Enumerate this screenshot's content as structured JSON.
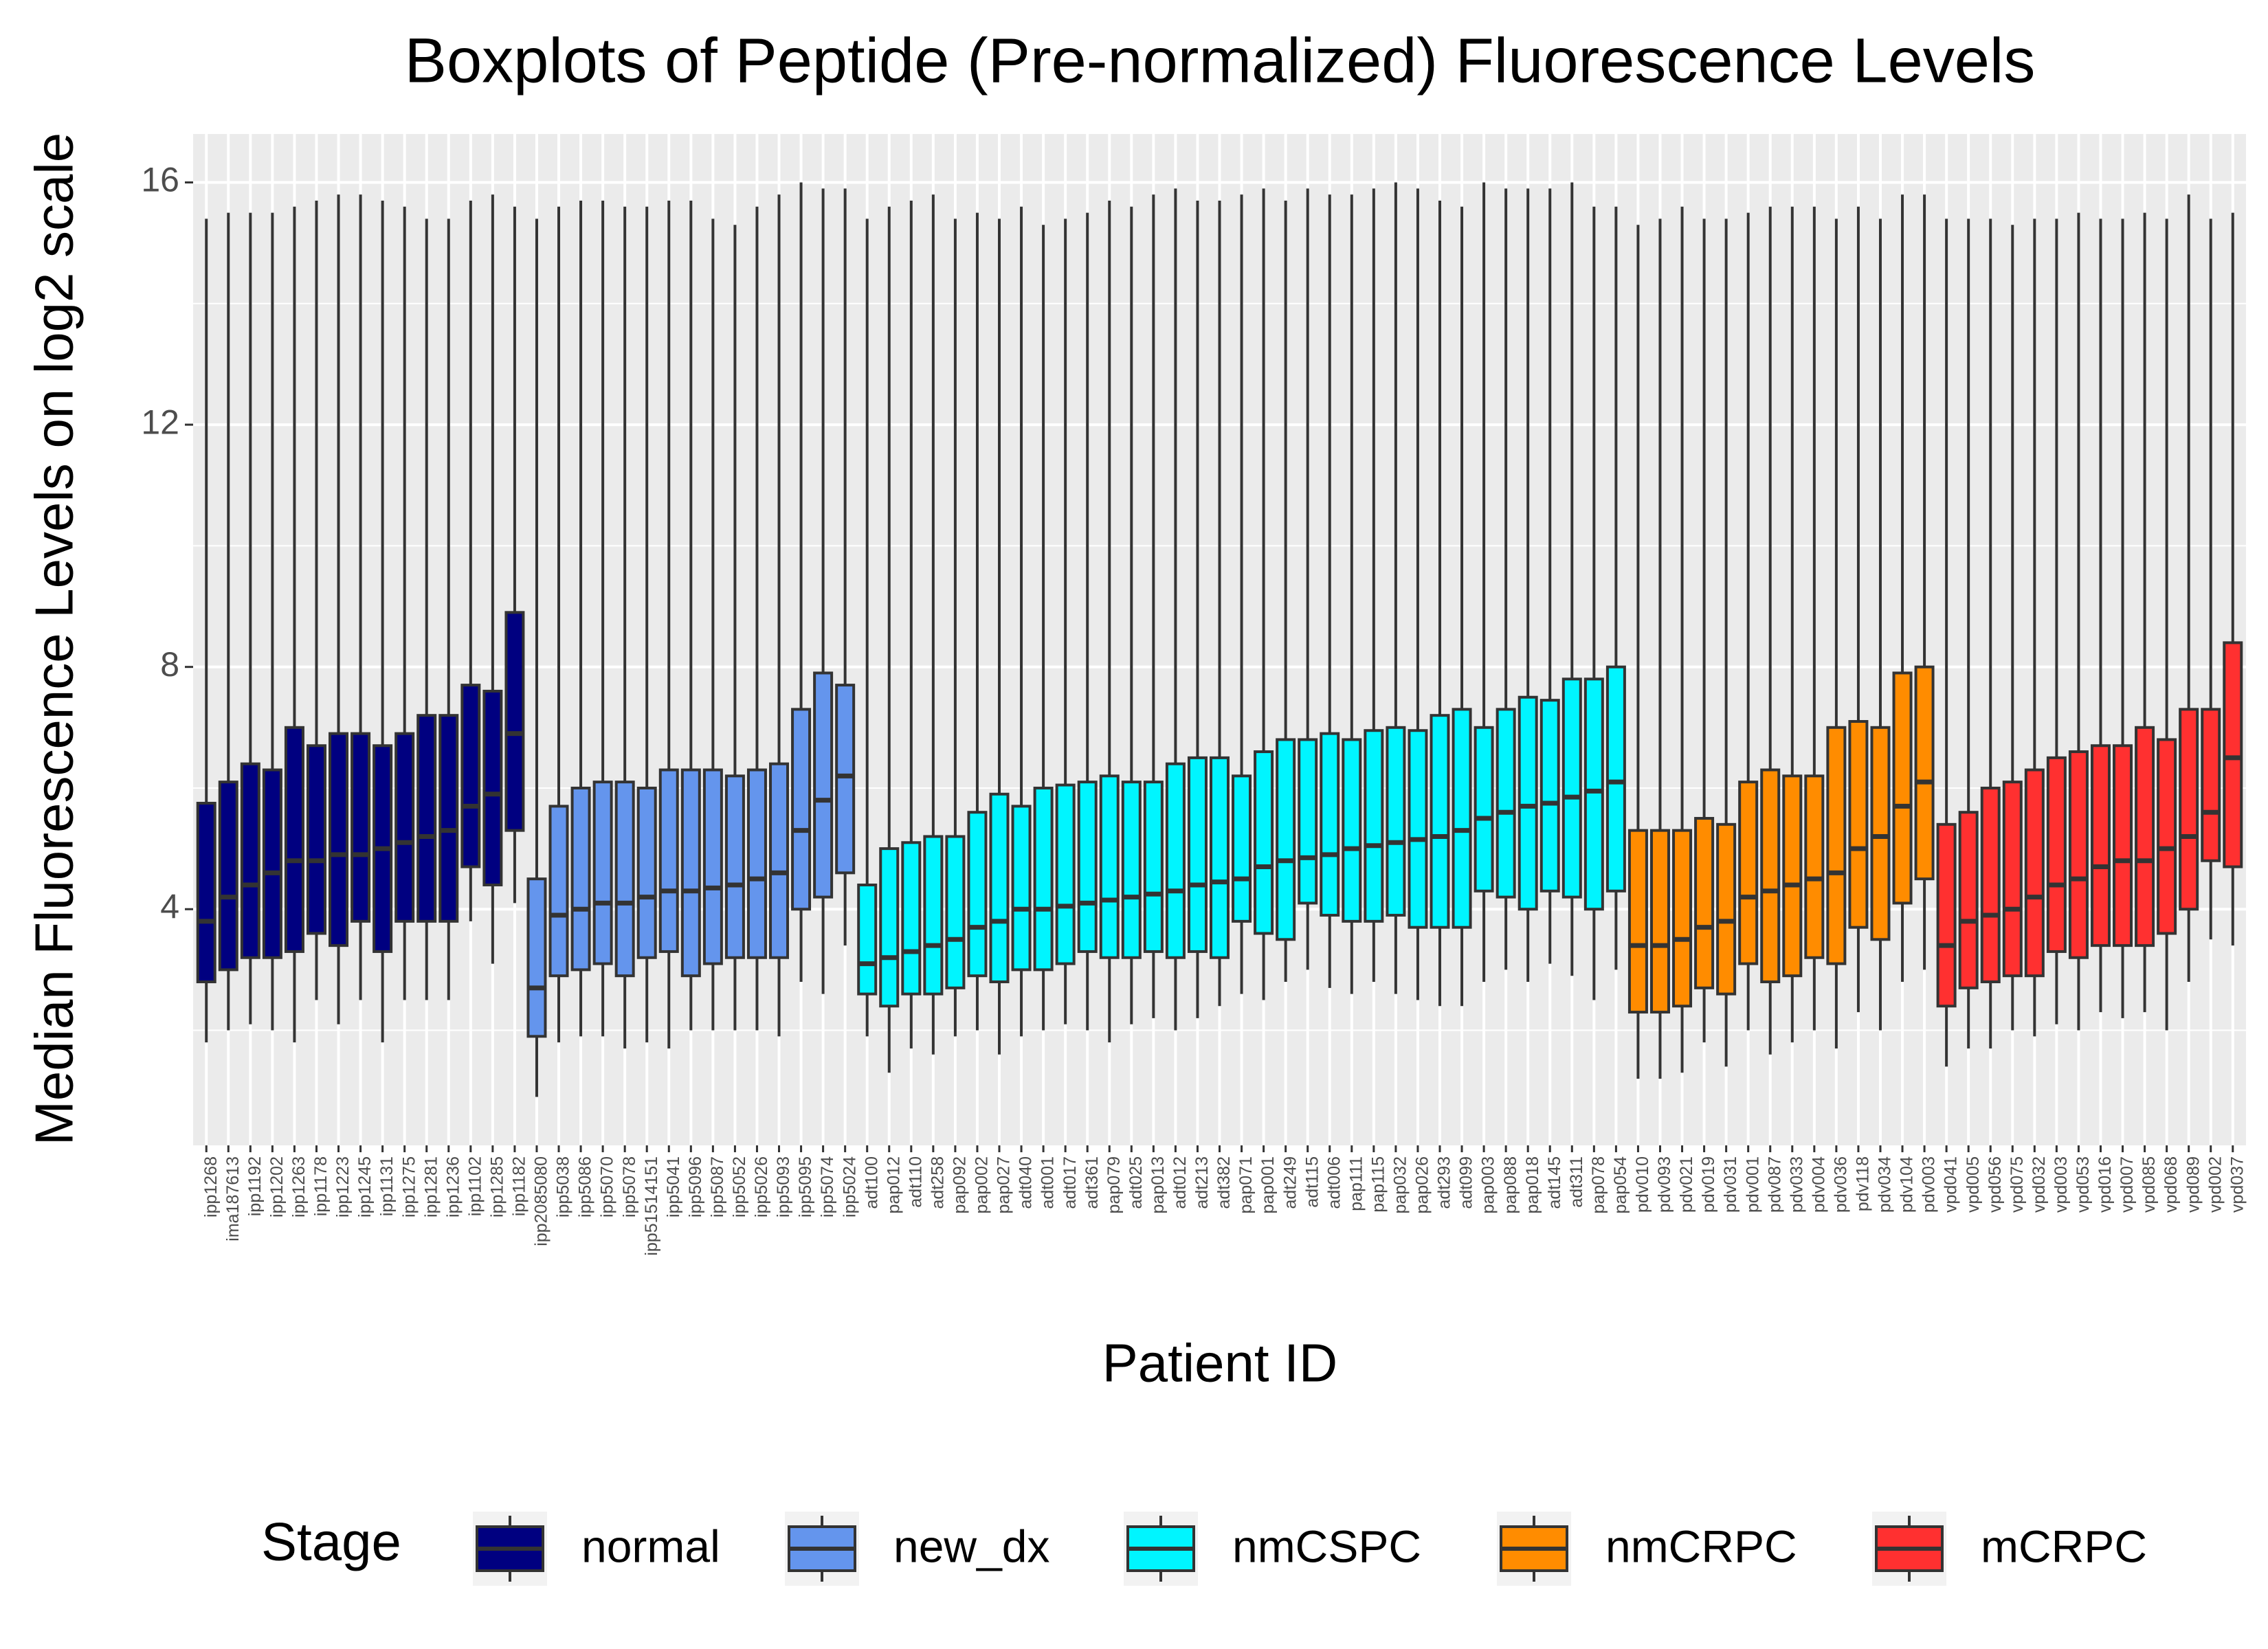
{
  "chart_data": {
    "type": "boxplot",
    "title": "Boxplots of Peptide (Pre-normalized) Fluorescence Levels",
    "x_label": "Patient ID",
    "y_label": "Median Fluorescence Levels on log2 scale",
    "legend_title": "Stage",
    "ylim": [
      0.1,
      16.8
    ],
    "yticks": [
      4,
      8,
      12,
      16
    ],
    "grid": true,
    "legend_position": "bottom",
    "series": [
      {
        "name": "normal",
        "color": "#000080",
        "categories": [
          "ipp1268",
          "ima187613",
          "ipp1192",
          "ipp1202",
          "ipp1263",
          "ipp1178",
          "ipp1223",
          "ipp1245",
          "ipp1131",
          "ipp1275",
          "ipp1281",
          "ipp1236",
          "ipp1102",
          "ipp1285",
          "ipp1182"
        ],
        "low": [
          1.8,
          2.0,
          2.1,
          2.0,
          1.8,
          2.5,
          2.1,
          2.5,
          1.8,
          2.5,
          2.5,
          2.5,
          3.8,
          3.1,
          4.1
        ],
        "q1": [
          2.8,
          3.0,
          3.2,
          3.2,
          3.3,
          3.6,
          3.4,
          3.8,
          3.3,
          3.8,
          3.8,
          3.8,
          4.7,
          4.4,
          5.3
        ],
        "median": [
          3.8,
          4.2,
          4.4,
          4.6,
          4.8,
          4.8,
          4.9,
          4.9,
          5.0,
          5.1,
          5.2,
          5.3,
          5.7,
          5.9,
          6.9
        ],
        "q3": [
          5.75,
          6.1,
          6.4,
          6.3,
          7.0,
          6.7,
          6.9,
          6.9,
          6.7,
          6.9,
          7.2,
          7.2,
          7.7,
          7.6,
          8.9
        ],
        "high": [
          15.4,
          15.5,
          15.5,
          15.5,
          15.6,
          15.7,
          15.8,
          15.8,
          15.7,
          15.6,
          15.4,
          15.4,
          15.7,
          15.8,
          15.6
        ]
      },
      {
        "name": "new_dx",
        "color": "#6495ED",
        "categories": [
          "ipp2085080",
          "ipp5038",
          "ipp5086",
          "ipp5070",
          "ipp5078",
          "ipp51514151",
          "ipp5041",
          "ipp5096",
          "ipp5087",
          "ipp5052",
          "ipp5026",
          "ipp5093",
          "ipp5095",
          "ipp5074",
          "ipp5024"
        ],
        "low": [
          0.9,
          1.8,
          1.9,
          1.9,
          1.7,
          1.8,
          1.7,
          2.0,
          2.0,
          2.0,
          2.0,
          1.9,
          2.8,
          2.6,
          3.4
        ],
        "q1": [
          1.9,
          2.9,
          3.0,
          3.1,
          2.9,
          3.2,
          3.3,
          2.9,
          3.1,
          3.2,
          3.2,
          3.2,
          4.0,
          4.2,
          4.6
        ],
        "median": [
          2.7,
          3.9,
          4.0,
          4.1,
          4.1,
          4.2,
          4.3,
          4.3,
          4.35,
          4.4,
          4.5,
          4.6,
          5.3,
          5.8,
          6.2
        ],
        "q3": [
          4.5,
          5.7,
          6.0,
          6.1,
          6.1,
          6.0,
          6.3,
          6.3,
          6.3,
          6.2,
          6.3,
          6.4,
          7.3,
          7.9,
          7.7
        ],
        "high": [
          15.4,
          15.6,
          15.7,
          15.7,
          15.6,
          15.6,
          15.7,
          15.7,
          15.4,
          15.3,
          15.6,
          15.8,
          16.0,
          15.9,
          15.9
        ]
      },
      {
        "name": "nmCSPC",
        "color": "#00F5FF",
        "categories": [
          "adt100",
          "pap012",
          "adt110",
          "adt258",
          "pap092",
          "pap002",
          "pap027",
          "adt040",
          "adt001",
          "adt017",
          "adt361",
          "pap079",
          "adt025",
          "pap013",
          "adt012",
          "adt213",
          "adt382",
          "pap071",
          "pap001",
          "adt249",
          "adt115",
          "adt006",
          "pap111",
          "pap115",
          "pap032",
          "pap026",
          "adt293",
          "adt099",
          "pap003",
          "pap088",
          "pap018",
          "adt145",
          "adt311",
          "pap078",
          "pap054"
        ],
        "low": [
          1.9,
          1.3,
          1.7,
          1.6,
          1.9,
          2.0,
          1.6,
          1.9,
          2.0,
          2.1,
          2.0,
          1.8,
          2.1,
          2.2,
          2.0,
          2.2,
          2.4,
          2.6,
          2.5,
          2.8,
          3.0,
          2.7,
          2.6,
          2.8,
          2.6,
          2.5,
          2.4,
          2.4,
          2.8,
          3.0,
          2.8,
          3.1,
          2.9,
          2.5,
          3.0
        ],
        "q1": [
          2.6,
          2.4,
          2.6,
          2.6,
          2.7,
          2.9,
          2.8,
          3.0,
          3.0,
          3.1,
          3.3,
          3.2,
          3.2,
          3.3,
          3.2,
          3.3,
          3.2,
          3.8,
          3.6,
          3.5,
          4.1,
          3.9,
          3.8,
          3.8,
          3.9,
          3.7,
          3.7,
          3.7,
          4.3,
          4.2,
          4.0,
          4.3,
          4.2,
          4.0,
          4.3
        ],
        "median": [
          3.1,
          3.2,
          3.3,
          3.4,
          3.5,
          3.7,
          3.8,
          4.0,
          4.0,
          4.05,
          4.1,
          4.15,
          4.2,
          4.25,
          4.3,
          4.4,
          4.45,
          4.5,
          4.7,
          4.8,
          4.85,
          4.9,
          5.0,
          5.05,
          5.1,
          5.15,
          5.2,
          5.3,
          5.5,
          5.6,
          5.7,
          5.75,
          5.85,
          5.95,
          6.1
        ],
        "q3": [
          4.4,
          5.0,
          5.1,
          5.2,
          5.2,
          5.6,
          5.9,
          5.7,
          6.0,
          6.05,
          6.1,
          6.2,
          6.1,
          6.1,
          6.4,
          6.5,
          6.5,
          6.2,
          6.6,
          6.8,
          6.8,
          6.9,
          6.8,
          6.95,
          7.0,
          6.95,
          7.2,
          7.3,
          7.0,
          7.3,
          7.5,
          7.45,
          7.8,
          7.8,
          8.0
        ],
        "high": [
          15.4,
          15.6,
          15.7,
          15.8,
          15.4,
          15.5,
          15.4,
          15.6,
          15.3,
          15.4,
          15.5,
          15.7,
          15.6,
          15.8,
          15.9,
          15.7,
          15.7,
          15.8,
          15.9,
          15.7,
          15.9,
          15.8,
          15.8,
          15.9,
          16.0,
          15.9,
          15.7,
          15.6,
          16.0,
          15.9,
          15.9,
          15.9,
          16.0,
          15.6,
          15.6
        ]
      },
      {
        "name": "nmCRPC",
        "color": "#FF8C00",
        "categories": [
          "pdv010",
          "pdv093",
          "pdv021",
          "pdv019",
          "pdv031",
          "pdv001",
          "pdv087",
          "pdv033",
          "pdv004",
          "pdv036",
          "pdv118",
          "pdv034",
          "pdv104",
          "pdv003"
        ],
        "low": [
          1.2,
          1.2,
          1.3,
          1.8,
          1.4,
          2.0,
          1.6,
          1.8,
          2.0,
          1.7,
          2.3,
          2.0,
          2.8,
          3.0
        ],
        "q1": [
          2.3,
          2.3,
          2.4,
          2.7,
          2.6,
          3.1,
          2.8,
          2.9,
          3.2,
          3.1,
          3.7,
          3.5,
          4.1,
          4.5
        ],
        "median": [
          3.4,
          3.4,
          3.5,
          3.7,
          3.8,
          4.2,
          4.3,
          4.4,
          4.5,
          4.6,
          5.0,
          5.2,
          5.7,
          6.1
        ],
        "q3": [
          5.3,
          5.3,
          5.3,
          5.5,
          5.4,
          6.1,
          6.3,
          6.2,
          6.2,
          7.0,
          7.1,
          7.0,
          7.9,
          8.0
        ],
        "high": [
          15.3,
          15.4,
          15.6,
          15.4,
          15.4,
          15.5,
          15.6,
          15.6,
          15.6,
          15.4,
          15.6,
          15.4,
          15.8,
          15.8
        ]
      },
      {
        "name": "mCRPC",
        "color": "#FF3030",
        "categories": [
          "vpd041",
          "vpd005",
          "vpd056",
          "vpd075",
          "vpd032",
          "vpd003",
          "vpd053",
          "vpd016",
          "vpd007",
          "vpd085",
          "vpd068",
          "vpd089",
          "vpd002",
          "vpd037"
        ],
        "low": [
          1.4,
          1.7,
          1.7,
          2.0,
          1.9,
          2.1,
          2.0,
          2.3,
          2.2,
          2.3,
          2.0,
          2.8,
          3.5,
          3.4
        ],
        "q1": [
          2.4,
          2.7,
          2.8,
          2.9,
          2.9,
          3.3,
          3.2,
          3.4,
          3.4,
          3.4,
          3.6,
          4.0,
          4.8,
          4.7
        ],
        "median": [
          3.4,
          3.8,
          3.9,
          4.0,
          4.2,
          4.4,
          4.5,
          4.7,
          4.8,
          4.8,
          5.0,
          5.2,
          5.6,
          6.5
        ],
        "q3": [
          5.4,
          5.6,
          6.0,
          6.1,
          6.3,
          6.5,
          6.6,
          6.7,
          6.7,
          7.0,
          6.8,
          7.3,
          7.3,
          8.4
        ],
        "high": [
          15.4,
          15.4,
          15.4,
          15.3,
          15.4,
          15.4,
          15.5,
          15.4,
          15.4,
          15.5,
          15.4,
          15.8,
          15.4,
          15.5
        ]
      }
    ]
  }
}
